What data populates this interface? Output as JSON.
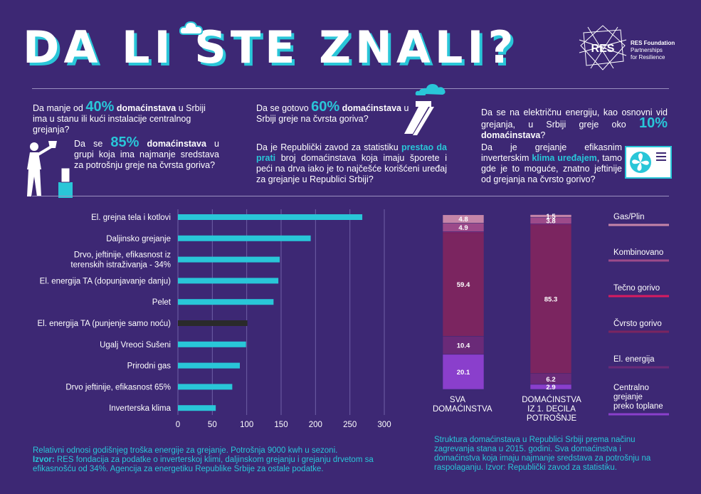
{
  "header": {
    "title": "DA LI STE ZNALI?",
    "logo_mark": "RES",
    "logo_name": "RES Foundation",
    "logo_tag1": "Partnerships",
    "logo_tag2": "for Resilience"
  },
  "facts": {
    "f1_pre": "Da manje od ",
    "f1_pct": "40%",
    "f1_bold": " domaćinstava",
    "f1_post": " u Srbiji ima u stanu ili kući instalacije centralnog grejanja?",
    "f2_pre": "Da se ",
    "f2_pct": "85%",
    "f2_bold": " domaćinstava",
    "f2_post": " u grupi koja ima najmanje sredstava za potrošnju greje na čvrsta goriva?",
    "f3_pre": "Da se gotovo ",
    "f3_pct": "60%",
    "f3_bold": " domaćinstava",
    "f3_post": " u Srbiji greje na čvrsta goriva?",
    "f4_pre": "Da je Republički zavod za statistiku ",
    "f4_hl": "prestao da prati",
    "f4_post": " broj domaćinstava koja imaju šporete i peći na drva iako je to najčešće korišćeni uređaj za grejanje u Republici Srbiji?",
    "f5_pre": "Da se na električnu energiju, kao osnovni vid grejanja, u Srbiji greje oko ",
    "f5_pct": "10%",
    "f5_bold": " domaćinstava",
    "f5_post": "?",
    "f6_pre": "Da je grejanje efikasnim inverterskim ",
    "f6_hl": "klima uređajem",
    "f6_post": ", tamo gde je to moguće, znatno jeftinije od grejanja na čvrsto gorivo?"
  },
  "icons": {
    "person": "person-chopping-wood-icon",
    "chimney": "chimney-smoke-icon",
    "ac": "air-conditioner-icon",
    "cloud": "cloud-icon"
  },
  "chart_data": [
    {
      "type": "bar",
      "orientation": "horizontal",
      "categories": [
        "El. grejna tela i kotlovi",
        "Daljinsko grejanje",
        "Drvo, jeftinije, efikasnost iz terenskih istraživanja - 34%",
        "El. energija TA (dopunjavanje danju)",
        "Pelet",
        "El. energija TA (punjenje samo noću)",
        "Ugalj Vreoci Sušeni",
        "Prirodni gas",
        "Drvo jeftinije, efikasnost 65%",
        "Inverterska klima"
      ],
      "values": [
        268,
        193,
        148,
        146,
        139,
        101,
        99,
        90,
        79,
        55
      ],
      "bar_colors": [
        "#29c6d8",
        "#29c6d8",
        "#29c6d8",
        "#29c6d8",
        "#29c6d8",
        "#2a2a2a",
        "#29c6d8",
        "#29c6d8",
        "#29c6d8",
        "#29c6d8"
      ],
      "xticks": [
        "0",
        "50",
        "100",
        "150",
        "200",
        "250",
        "300"
      ],
      "xlim": [
        0,
        300
      ],
      "grid": true,
      "notes": {
        "line1": "Relativni odnosi godišnjeg troška energije za grejanje. Potrošnja 9000 kwh u sezoni.",
        "source_label": "Izvor:",
        "source_text": " RES fondacija za podatke o inverterskoj klimi, daljinskom grejanju i grejanju drvetom sa efikasnošću od 34%. Agencija za energetiku Republike Srbije za ostale podatke."
      }
    },
    {
      "type": "bar",
      "stacked": true,
      "categories": [
        "SVA DOMAĆINSTVA",
        "DOMAĆINSTVA IZ 1. DECILA POTROŠNJE"
      ],
      "series": [
        {
          "name": "Centralno grejanje preko toplane",
          "values": [
            20.1,
            2.9
          ],
          "labels": [
            "20.1",
            "2.9"
          ],
          "color": "#8a3fcc"
        },
        {
          "name": "El. energija",
          "values": [
            10.4,
            6.2
          ],
          "labels": [
            "10.4",
            "6.2"
          ],
          "color": "#6a2a78"
        },
        {
          "name": "Čvrsto gorivo",
          "values": [
            59.4,
            85.3
          ],
          "labels": [
            "59.4",
            "85.3"
          ],
          "color": "#7b2560"
        },
        {
          "name": "Tečno gorivo",
          "values": [
            0.5,
            0.5
          ],
          "labels": [
            "",
            ""
          ],
          "color": "#d81b60"
        },
        {
          "name": "Kombinovano",
          "values": [
            4.9,
            3.8
          ],
          "labels": [
            "4.9",
            "3.8"
          ],
          "color": "#9c4a8a"
        },
        {
          "name": "Gas/Plin",
          "values": [
            4.8,
            1.5
          ],
          "labels": [
            "4.8",
            "1.5"
          ],
          "color": "#c585a8"
        }
      ],
      "caption": "Struktura domaćinstava u Republici Srbiji prema načinu zagrevanja stana u 2015. godini. Sva domaćinstva i domaćinstva koja imaju najmanje sredstava za potrošnju na raspolaganju. Izvor: Republički zavod za statistiku."
    }
  ]
}
